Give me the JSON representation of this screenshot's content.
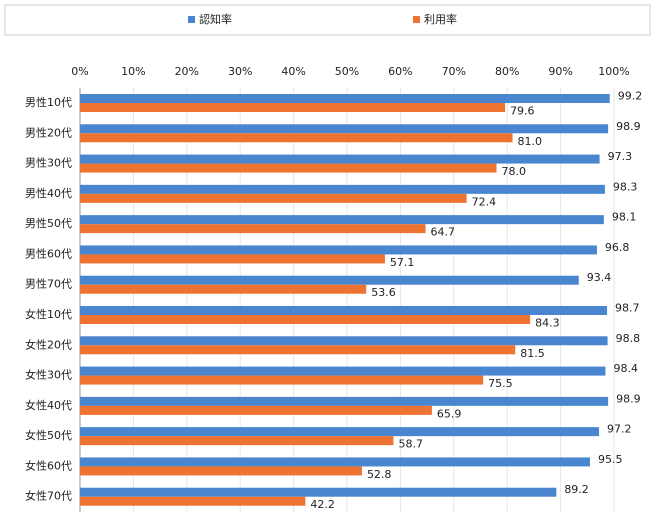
{
  "chart_data": {
    "type": "bar",
    "orientation": "horizontal",
    "categories": [
      "男性10代",
      "男性20代",
      "男性30代",
      "男性40代",
      "男性50代",
      "男性60代",
      "男性70代",
      "女性10代",
      "女性20代",
      "女性30代",
      "女性40代",
      "女性50代",
      "女性60代",
      "女性70代"
    ],
    "series": [
      {
        "name": "認知率",
        "color": "#4a86d0",
        "values": [
          99.2,
          98.9,
          97.3,
          98.3,
          98.1,
          96.8,
          93.4,
          98.7,
          98.8,
          98.4,
          98.9,
          97.2,
          95.5,
          89.2
        ],
        "value_labels": [
          "99.2",
          "98.9",
          "97.3",
          "98.3",
          "98.1",
          "96.8",
          "93.4",
          "98.7",
          "98.8",
          "98.4",
          "98.9",
          "97.2",
          "95.5",
          "89.2"
        ]
      },
      {
        "name": "利用率",
        "color": "#ee7330",
        "values": [
          79.6,
          81.0,
          78.0,
          72.4,
          64.7,
          57.1,
          53.6,
          84.3,
          81.5,
          75.5,
          65.9,
          58.7,
          52.8,
          42.2
        ],
        "value_labels": [
          "79.6",
          "81.0",
          "78.0",
          "72.4",
          "64.7",
          "57.1",
          "53.6",
          "84.3",
          "81.5",
          "75.5",
          "65.9",
          "58.7",
          "52.8",
          "42.2"
        ]
      }
    ],
    "xlim": [
      0,
      100
    ],
    "xticks": [
      {
        "value": 0,
        "label": "0%"
      },
      {
        "value": 10,
        "label": "10%"
      },
      {
        "value": 20,
        "label": "20%"
      },
      {
        "value": 30,
        "label": "30%"
      },
      {
        "value": 40,
        "label": "40%"
      },
      {
        "value": 50,
        "label": "50%"
      },
      {
        "value": 60,
        "label": "60%"
      },
      {
        "value": 70,
        "label": "70%"
      },
      {
        "value": 80,
        "label": "80%"
      },
      {
        "value": 90,
        "label": "90%"
      },
      {
        "value": 100,
        "label": "100%"
      }
    ],
    "grid": true,
    "legend": "top"
  }
}
